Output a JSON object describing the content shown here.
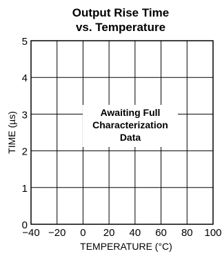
{
  "chart_data": {
    "type": "line",
    "title": [
      "Output Rise Time",
      "vs. Temperature"
    ],
    "xlabel": "TEMPERATURE (°C)",
    "ylabel": "TIME (µs)",
    "xlim": [
      -40,
      100
    ],
    "ylim": [
      0,
      5
    ],
    "x_ticks": [
      -40,
      -20,
      0,
      20,
      40,
      60,
      80,
      100
    ],
    "y_ticks": [
      0,
      1,
      2,
      3,
      4,
      5
    ],
    "grid": true,
    "series": [],
    "annotation": [
      "Awaiting Full",
      "Characterization",
      "Data"
    ]
  }
}
